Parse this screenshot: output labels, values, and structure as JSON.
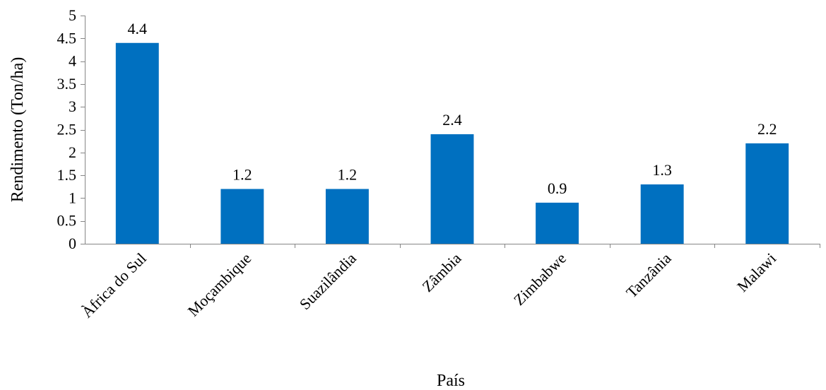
{
  "chart_data": {
    "type": "bar",
    "title": "",
    "xlabel": "País",
    "ylabel": "Rendimento (Ton/ha)",
    "categories": [
      "Àfrica do Sul",
      "Moçambique",
      "Suazilândia",
      "Zâmbia",
      "Zimbabwe",
      "Tanzânia",
      "Malawi"
    ],
    "values": [
      4.4,
      1.2,
      1.2,
      2.4,
      0.9,
      1.3,
      2.2
    ],
    "data_labels": [
      "4.4",
      "1.2",
      "1.2",
      "2.4",
      "0.9",
      "1.3",
      "2.2"
    ],
    "ylim": [
      0,
      5
    ],
    "yticks": [
      0,
      0.5,
      1,
      1.5,
      2,
      2.5,
      3,
      3.5,
      4,
      4.5,
      5
    ],
    "ytick_labels": [
      "0",
      "0.5",
      "1",
      "1.5",
      "2",
      "2.5",
      "3",
      "3.5",
      "4",
      "4.5",
      "5"
    ],
    "grid": false,
    "legend": "none",
    "bar_color": "#0070C0",
    "axis_color": "#868686"
  }
}
